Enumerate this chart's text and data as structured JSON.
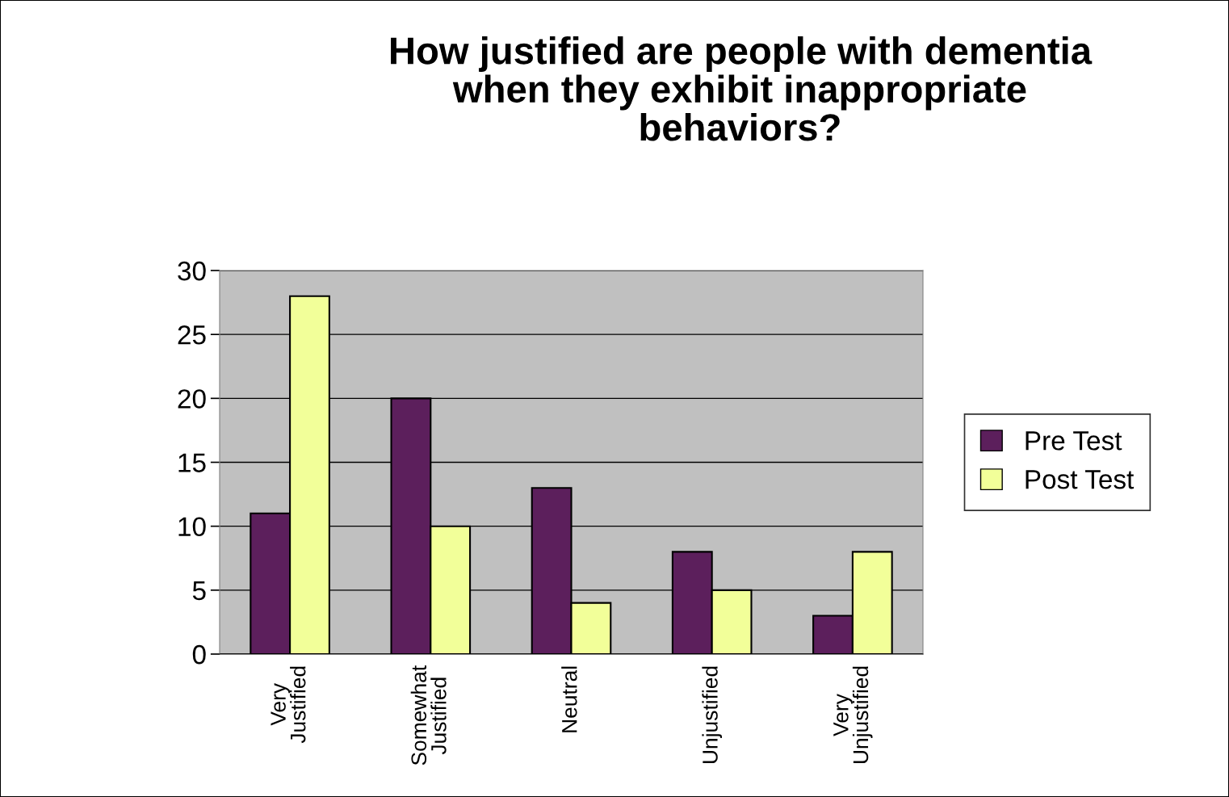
{
  "chart_data": {
    "type": "bar",
    "title": "How justified are people with dementia\nwhen they exhibit inappropriate\nbehaviors?",
    "categories": [
      "Very\nJustified",
      "Somewhat\nJustified",
      "Neutral",
      "Unjustified",
      "Very\nUnjustified"
    ],
    "series": [
      {
        "name": "Pre Test",
        "color": "#5c1f5c",
        "values": [
          11,
          20,
          13,
          8,
          3
        ]
      },
      {
        "name": "Post Test",
        "color": "#f2ff99",
        "values": [
          28,
          10,
          4,
          5,
          8
        ]
      }
    ],
    "ylim": [
      0,
      30
    ],
    "yticks": [
      0,
      5,
      10,
      15,
      20,
      25,
      30
    ],
    "grid": "y",
    "legend": "right"
  }
}
